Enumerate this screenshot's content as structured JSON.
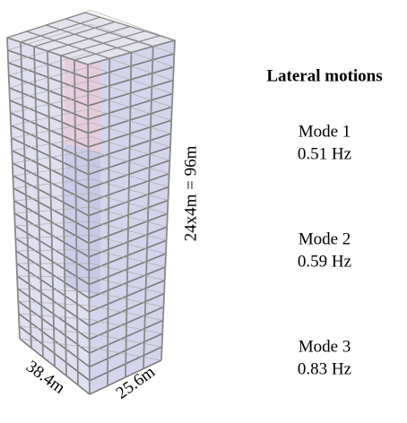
{
  "title": "Lateral motions",
  "modes": [
    {
      "name": "Mode 1",
      "frequency": "0.51 Hz"
    },
    {
      "name": "Mode 2",
      "frequency": "0.59 Hz"
    },
    {
      "name": "Mode 3",
      "frequency": "0.83 Hz"
    }
  ],
  "dimensions": {
    "height": "24x4m = 96m",
    "length": "38.4m",
    "width": "25.6m"
  }
}
